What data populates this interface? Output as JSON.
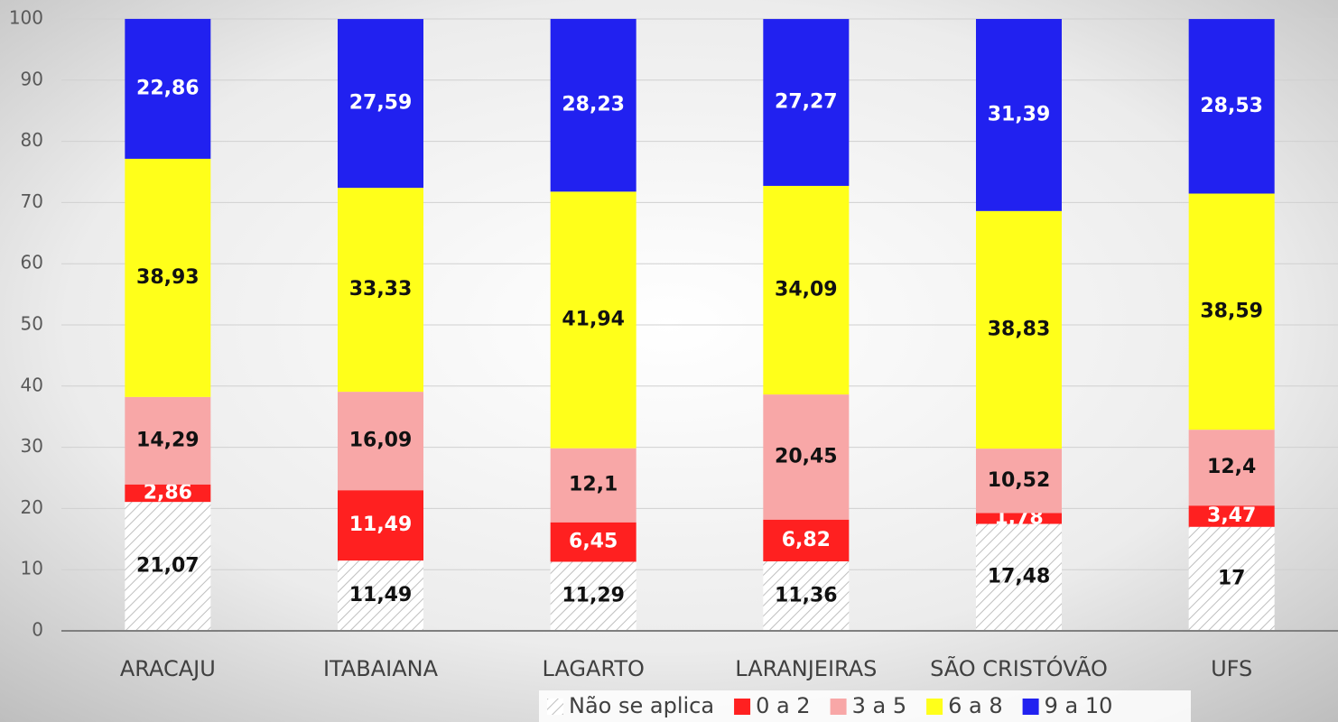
{
  "chart_data": {
    "type": "stacked_bar",
    "categories": [
      "ARACAJU",
      "ITABAIANA",
      "LAGARTO",
      "LARANJEIRAS",
      "SÃO CRISTÓVÃO",
      "UFS"
    ],
    "series": [
      {
        "name": "Não se aplica",
        "color": "#bfbfbf",
        "pattern": "hatch",
        "values": [
          21.07,
          11.49,
          11.29,
          11.36,
          17.48,
          17
        ],
        "value_labels": [
          "21,07",
          "11,49",
          "11,29",
          "11,36",
          "17,48",
          "17"
        ]
      },
      {
        "name": "0 a 2",
        "color": "#ff2020",
        "values": [
          2.86,
          11.49,
          6.45,
          6.82,
          1.78,
          3.47
        ],
        "value_labels": [
          "2,86",
          "11,49",
          "6,45",
          "6,82",
          "1,78",
          "3,47"
        ]
      },
      {
        "name": "3 a 5",
        "color": "#f8a7a7",
        "values": [
          14.29,
          16.09,
          12.1,
          20.45,
          10.52,
          12.4
        ],
        "value_labels": [
          "14,29",
          "16,09",
          "12,1",
          "20,45",
          "10,52",
          "12,4"
        ]
      },
      {
        "name": "6 a 8",
        "color": "#ffff1a",
        "values": [
          38.93,
          33.33,
          41.94,
          34.09,
          38.83,
          38.59
        ],
        "value_labels": [
          "38,93",
          "33,33",
          "41,94",
          "34,09",
          "38,83",
          "38,59"
        ]
      },
      {
        "name": "9 a 10",
        "color": "#2121f0",
        "values": [
          22.86,
          27.59,
          28.23,
          27.27,
          31.39,
          28.53
        ],
        "value_labels": [
          "22,86",
          "27,59",
          "28,23",
          "27,27",
          "31,39",
          "28,53"
        ]
      }
    ],
    "ylim": [
      0,
      100
    ],
    "yticks": [
      0,
      10,
      20,
      30,
      40,
      50,
      60,
      70,
      80,
      90,
      100
    ],
    "grid": true,
    "legend": "bottom"
  }
}
